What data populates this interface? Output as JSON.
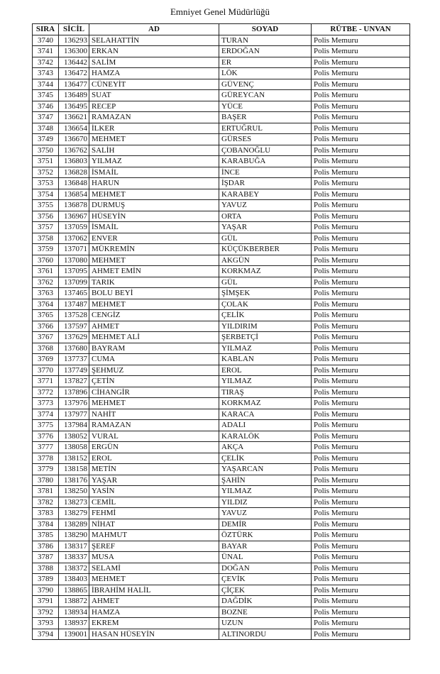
{
  "header": {
    "title": "Emniyet Genel Müdürlüğü"
  },
  "table": {
    "columns": [
      "SIRA",
      "SİCİL",
      "AD",
      "SOYAD",
      "RÜTBE - UNVAN"
    ],
    "rows": [
      [
        3740,
        136293,
        "SELAHATTİN",
        "TURAN",
        "Polis Memuru"
      ],
      [
        3741,
        136300,
        "ERKAN",
        "ERDOĞAN",
        "Polis Memuru"
      ],
      [
        3742,
        136442,
        "SALİM",
        "ER",
        "Polis Memuru"
      ],
      [
        3743,
        136472,
        "HAMZA",
        "LÖK",
        "Polis Memuru"
      ],
      [
        3744,
        136477,
        "CÜNEYİT",
        "GÜVENÇ",
        "Polis Memuru"
      ],
      [
        3745,
        136489,
        "SUAT",
        "GÜREYCAN",
        "Polis Memuru"
      ],
      [
        3746,
        136495,
        "RECEP",
        "YÜCE",
        "Polis Memuru"
      ],
      [
        3747,
        136621,
        "RAMAZAN",
        "BAŞER",
        "Polis Memuru"
      ],
      [
        3748,
        136654,
        "İLKER",
        "ERTUĞRUL",
        "Polis Memuru"
      ],
      [
        3749,
        136670,
        "MEHMET",
        "GÜRSES",
        "Polis Memuru"
      ],
      [
        3750,
        136762,
        "SALİH",
        "ÇOBANOĞLU",
        "Polis Memuru"
      ],
      [
        3751,
        136803,
        "YILMAZ",
        "KARABUĞA",
        "Polis Memuru"
      ],
      [
        3752,
        136828,
        "İSMAİL",
        "İNCE",
        "Polis Memuru"
      ],
      [
        3753,
        136848,
        "HARUN",
        "İŞDAR",
        "Polis Memuru"
      ],
      [
        3754,
        136854,
        "MEHMET",
        "KARABEY",
        "Polis Memuru"
      ],
      [
        3755,
        136878,
        "DURMUŞ",
        "YAVUZ",
        "Polis Memuru"
      ],
      [
        3756,
        136967,
        "HÜSEYİN",
        "ORTA",
        "Polis Memuru"
      ],
      [
        3757,
        137059,
        "İSMAİL",
        "YAŞAR",
        "Polis Memuru"
      ],
      [
        3758,
        137062,
        "ENVER",
        "GÜL",
        "Polis Memuru"
      ],
      [
        3759,
        137071,
        "MÜKREMİN",
        "KÜÇÜKBERBER",
        "Polis Memuru"
      ],
      [
        3760,
        137080,
        "MEHMET",
        "AKGÜN",
        "Polis Memuru"
      ],
      [
        3761,
        137095,
        "AHMET EMİN",
        "KORKMAZ",
        "Polis Memuru"
      ],
      [
        3762,
        137099,
        "TARIK",
        "GÜL",
        "Polis Memuru"
      ],
      [
        3763,
        137465,
        "BOLU BEYİ",
        "ŞİMŞEK",
        "Polis Memuru"
      ],
      [
        3764,
        137487,
        "MEHMET",
        "ÇOLAK",
        "Polis Memuru"
      ],
      [
        3765,
        137528,
        "CENGİZ",
        "ÇELİK",
        "Polis Memuru"
      ],
      [
        3766,
        137597,
        "AHMET",
        "YILDIRIM",
        "Polis Memuru"
      ],
      [
        3767,
        137629,
        "MEHMET ALİ",
        "ŞERBETÇİ",
        "Polis Memuru"
      ],
      [
        3768,
        137680,
        "BAYRAM",
        "YILMAZ",
        "Polis Memuru"
      ],
      [
        3769,
        137737,
        "CUMA",
        "KABLAN",
        "Polis Memuru"
      ],
      [
        3770,
        137749,
        "ŞEHMUZ",
        "EROL",
        "Polis Memuru"
      ],
      [
        3771,
        137827,
        "ÇETİN",
        "YILMAZ",
        "Polis Memuru"
      ],
      [
        3772,
        137896,
        "CİHANGİR",
        "TIRAŞ",
        "Polis Memuru"
      ],
      [
        3773,
        137976,
        "MEHMET",
        "KORKMAZ",
        "Polis Memuru"
      ],
      [
        3774,
        137977,
        "NAHİT",
        "KARACA",
        "Polis Memuru"
      ],
      [
        3775,
        137984,
        "RAMAZAN",
        "ADALI",
        "Polis Memuru"
      ],
      [
        3776,
        138052,
        "VURAL",
        "KARALÖK",
        "Polis Memuru"
      ],
      [
        3777,
        138058,
        "ERGÜN",
        "AKÇA",
        "Polis Memuru"
      ],
      [
        3778,
        138152,
        "EROL",
        "ÇELİK",
        "Polis Memuru"
      ],
      [
        3779,
        138158,
        "METİN",
        "YAŞARCAN",
        "Polis Memuru"
      ],
      [
        3780,
        138176,
        "YAŞAR",
        "ŞAHİN",
        "Polis Memuru"
      ],
      [
        3781,
        138250,
        "YASİN",
        "YILMAZ",
        "Polis Memuru"
      ],
      [
        3782,
        138273,
        "CEMİL",
        "YILDIZ",
        "Polis Memuru"
      ],
      [
        3783,
        138279,
        "FEHMİ",
        "YAVUZ",
        "Polis Memuru"
      ],
      [
        3784,
        138289,
        "NİHAT",
        "DEMİR",
        "Polis Memuru"
      ],
      [
        3785,
        138290,
        "MAHMUT",
        "ÖZTÜRK",
        "Polis Memuru"
      ],
      [
        3786,
        138317,
        "ŞEREF",
        "BAYAR",
        "Polis Memuru"
      ],
      [
        3787,
        138337,
        "MUSA",
        "ÜNAL",
        "Polis Memuru"
      ],
      [
        3788,
        138372,
        "SELAMİ",
        "DOĞAN",
        "Polis Memuru"
      ],
      [
        3789,
        138403,
        "MEHMET",
        "ÇEVİK",
        "Polis Memuru"
      ],
      [
        3790,
        138865,
        "İBRAHİM HALİL",
        "ÇİÇEK",
        "Polis Memuru"
      ],
      [
        3791,
        138872,
        "AHMET",
        "DAĞDİK",
        "Polis Memuru"
      ],
      [
        3792,
        138934,
        "HAMZA",
        "BOZNE",
        "Polis Memuru"
      ],
      [
        3793,
        138937,
        "EKREM",
        "UZUN",
        "Polis Memuru"
      ],
      [
        3794,
        139001,
        "HASAN HÜSEYİN",
        "ALTINORDU",
        "Polis Memuru"
      ]
    ]
  }
}
